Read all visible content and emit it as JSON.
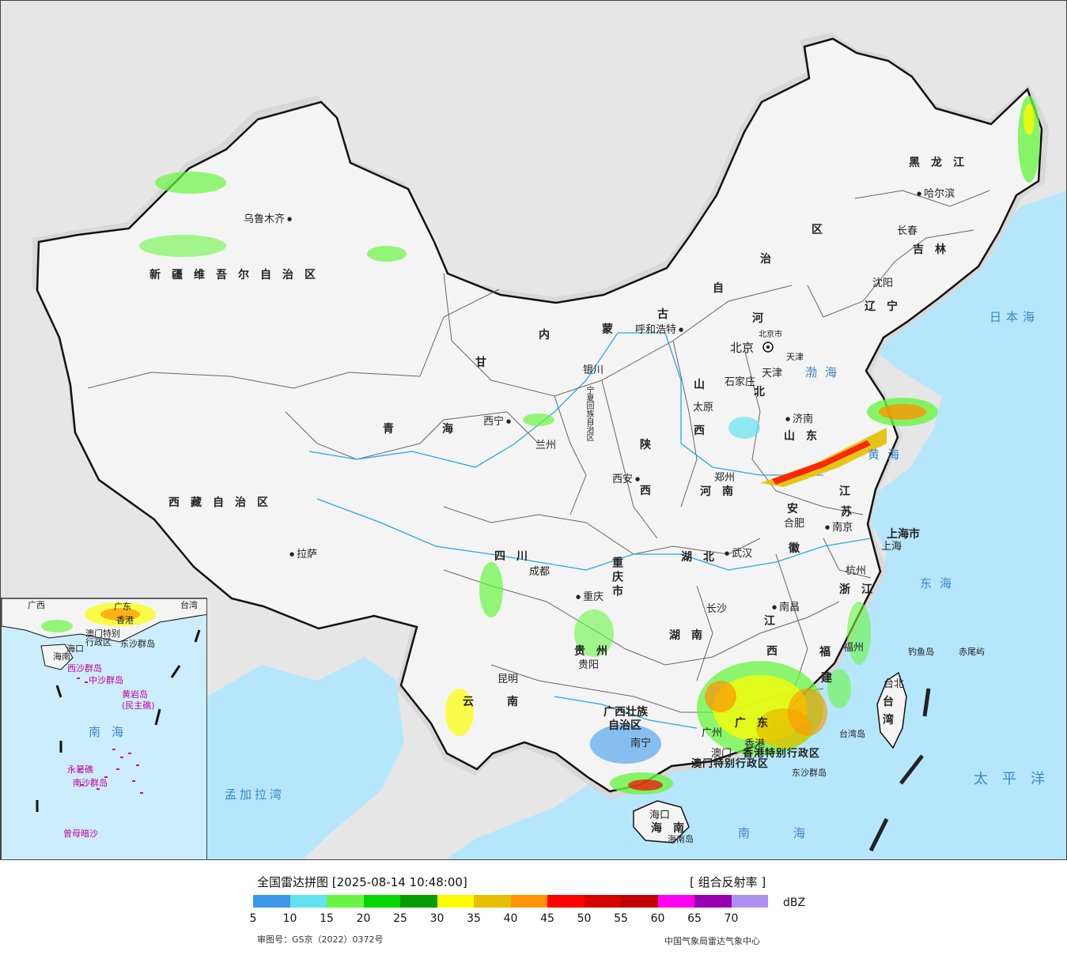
{
  "map": {
    "provinces": {
      "xinjiang": "新疆维吾尔自治区",
      "xizang": "西藏自治区",
      "qinghai": [
        "青",
        "海"
      ],
      "gansu": "甘",
      "neimenggu": [
        "内",
        "蒙",
        "古",
        "自",
        "治",
        "区"
      ],
      "heilongjiang": "黑龙江",
      "jilin": "吉林",
      "liaoning": "辽宁",
      "hebei": [
        "河",
        "北"
      ],
      "shanxi": [
        "山",
        "西"
      ],
      "shaanxi": [
        "陕",
        "西"
      ],
      "shandong": "山东",
      "henan": "河南",
      "jiangsu": [
        "江",
        "苏"
      ],
      "anhui": [
        "安",
        "徽"
      ],
      "hubei": "湖北",
      "sichuan": "四川",
      "chongqing": "重庆市",
      "hunan": "湖南",
      "jiangxi": [
        "江",
        "西"
      ],
      "zhejiang": "浙江",
      "fujian": [
        "福",
        "建"
      ],
      "guizhou": "贵州",
      "yunnan": [
        "云",
        "南"
      ],
      "guangxi": [
        "广西壮族",
        "自治区"
      ],
      "guangdong": "广东",
      "hainan": [
        "海",
        "南"
      ],
      "taiwan": [
        "台",
        "湾"
      ],
      "shanghai": "上海市",
      "tianjin": "天津",
      "beijing_small": "北京市",
      "ningxia": "宁夏回族自治区",
      "hongkong": "香港特别行政区",
      "macau": "澳门特别行政区"
    },
    "cities": {
      "urumqi": "乌鲁木齐",
      "lhasa": "拉萨",
      "xining": "西宁",
      "lanzhou": "兰州",
      "yinchuan": "银川",
      "hohhot": "呼和浩特",
      "beijing": "北京",
      "tianjin": "天津",
      "shijiazhuang": "石家庄",
      "taiyuan": "太原",
      "jinan": "济南",
      "zhengzhou": "郑州",
      "xian": "西安",
      "hefei": "合肥",
      "nanjing": "南京",
      "shanghai": "上海",
      "hangzhou": "杭州",
      "wuhan": "武汉",
      "chengdu": "成都",
      "chongqing": "重庆",
      "changsha": "长沙",
      "nanchang": "南昌",
      "fuzhou": "福州",
      "guiyang": "贵阳",
      "kunming": "昆明",
      "nanning": "南宁",
      "guangzhou": "广州",
      "aomen": "澳门",
      "xianggang": "香港",
      "haikou": "海口",
      "taibei": "台北",
      "harbin": "哈尔滨",
      "changchun": "长春",
      "shenyang": "沈阳"
    },
    "islands": {
      "diaoyu": "钓鱼岛",
      "chiwei": "赤尾屿",
      "taiwan_island": "台湾岛",
      "hainan_island": "海南岛",
      "dongsha": "东沙群岛"
    },
    "seas": {
      "bohai": "渤海",
      "huanghai": "黄海",
      "donghai": "东海",
      "nanhai": "南海",
      "taipingyang": "太平洋",
      "ribenhai": "日本海",
      "mengjialawan": "孟加拉湾"
    },
    "inset": {
      "guangxi": "广西",
      "guangdong": "广东",
      "taiwan": "台湾",
      "xianggang": "香港",
      "aomen": "澳门特别",
      "xingzhengqu": "行政区",
      "dongsha": "东沙群岛",
      "haikou": "海口",
      "hainan": "海南",
      "xisha": "西沙群岛",
      "zhongsha": "中沙群岛",
      "huangyan": "黄岩岛",
      "huangyan_alt": "(民主礁)",
      "nanhai": "南海",
      "yongshu": "永暑礁",
      "nansha": "南沙群岛",
      "zengmu": "曾母暗沙"
    },
    "colors": {
      "land": "#f4f4f4",
      "foreign_land": "#e6e6e6",
      "water": "#b6e6fc",
      "border": "#111111",
      "province_border": "#666666",
      "river": "#27a8e0"
    }
  },
  "legend": {
    "title": "全国雷达拼图 [2025-08-14 10:48:00]",
    "product": "[ 组合反射率 ]",
    "unit": "dBZ",
    "ticks": [
      "5",
      "10",
      "15",
      "20",
      "25",
      "30",
      "35",
      "40",
      "45",
      "50",
      "55",
      "60",
      "65",
      "70"
    ],
    "colors": [
      "#3d99ec",
      "#63e3f0",
      "#69f543",
      "#06d700",
      "#069c00",
      "#fdfd00",
      "#e6c000",
      "#fd9300",
      "#fd0000",
      "#d60000",
      "#c00000",
      "#fd00f1",
      "#9900b0",
      "#ad90f0"
    ],
    "approval": "审图号：GS京（2022）0372号",
    "org": "中国气象局雷达气象中心"
  }
}
